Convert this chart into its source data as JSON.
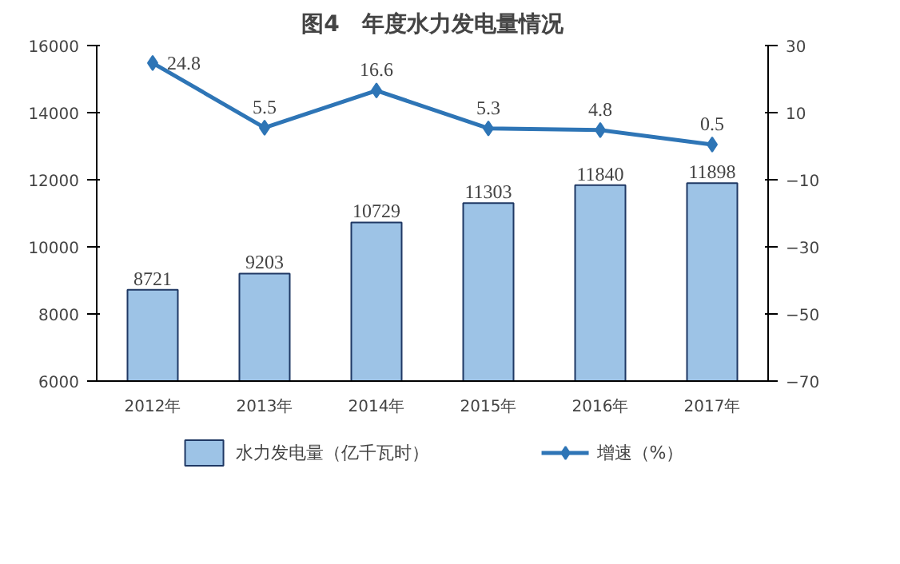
{
  "chart_data": {
    "type": "bar",
    "title": "图4　年度水力发电量情况",
    "categories": [
      "2012年",
      "2013年",
      "2014年",
      "2015年",
      "2016年",
      "2017年"
    ],
    "series": [
      {
        "name": "水力发电量（亿千瓦时）",
        "type": "bar",
        "color": "#9dc3e6",
        "values": [
          8721,
          9203,
          10729,
          11303,
          11840,
          11898
        ]
      },
      {
        "name": "增速（%）",
        "type": "line",
        "axis": "y2",
        "color": "#2e75b6",
        "marker": "diamond",
        "values": [
          24.8,
          5.5,
          16.6,
          5.3,
          4.8,
          0.5
        ]
      }
    ],
    "ylim": [
      6000,
      16000
    ],
    "yticks": [
      6000,
      8000,
      10000,
      12000,
      14000,
      16000
    ],
    "y2lim": [
      -70,
      30
    ],
    "y2ticks": [
      -70,
      -50,
      -30,
      -10,
      10,
      30
    ],
    "data_labels": true,
    "grid": false,
    "legend": "bottom"
  }
}
